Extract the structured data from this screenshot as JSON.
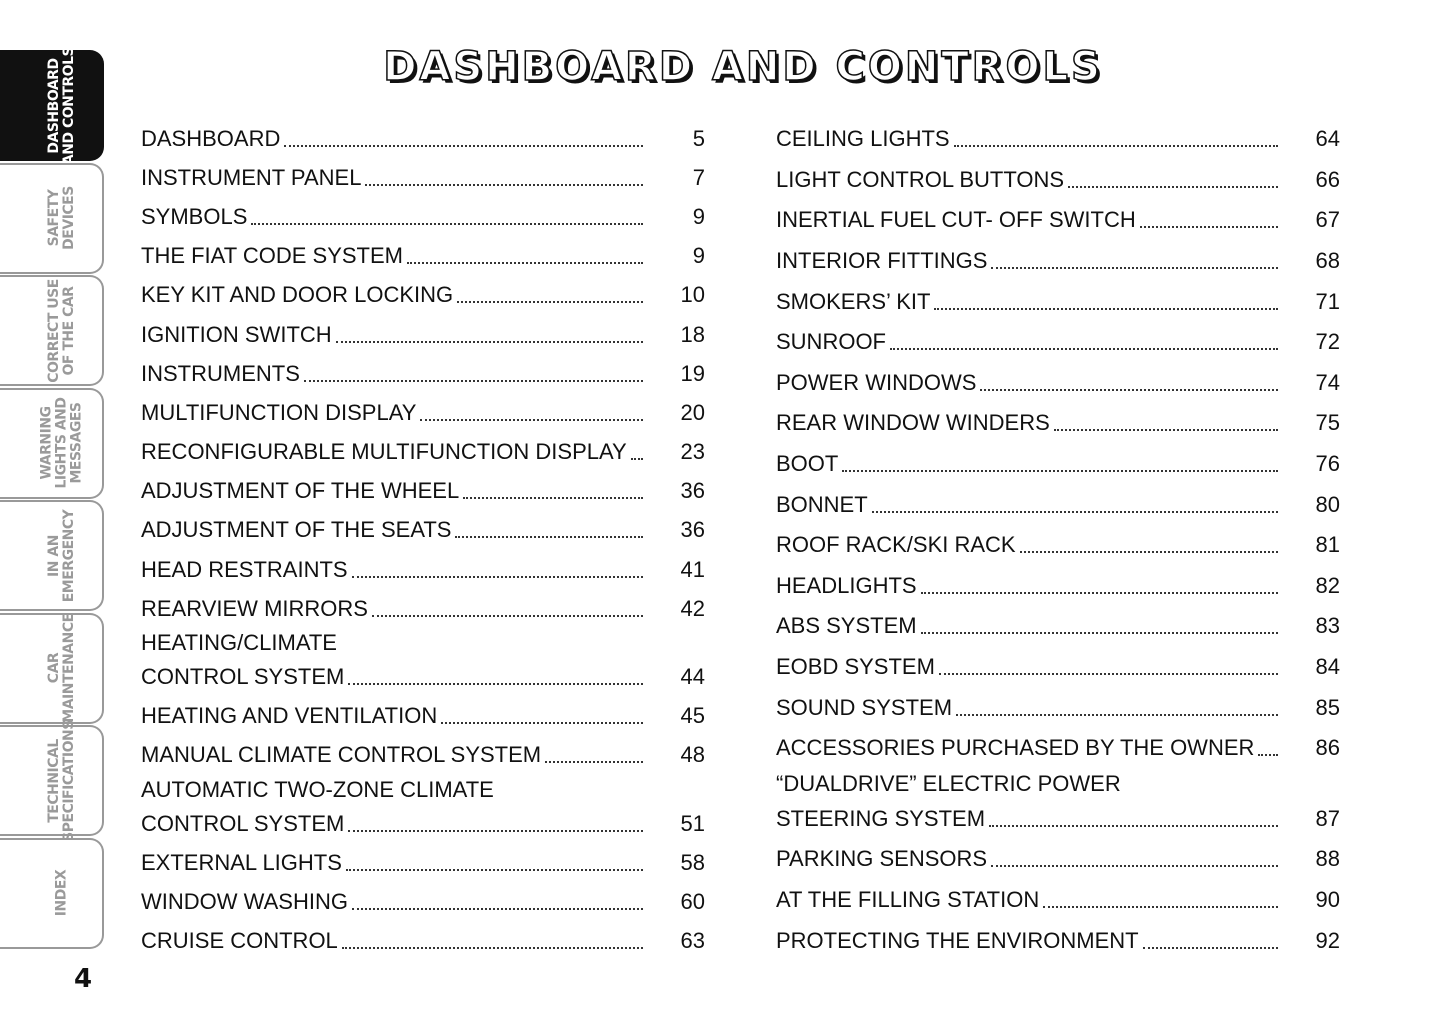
{
  "title": "DASHBOARD AND CONTROLS",
  "tabs": [
    {
      "label": "DASHBOARD\nAND CONTROLS",
      "active": true
    },
    {
      "label": "SAFETY\nDEVICES",
      "active": false
    },
    {
      "label": "CORRECT USE\nOF THE CAR",
      "active": false
    },
    {
      "label": "WARNING\nLIGHTS AND\nMESSAGES",
      "active": false
    },
    {
      "label": "IN AN\nEMERGENCY",
      "active": false
    },
    {
      "label": "CAR\nMAINTENANCE",
      "active": false
    },
    {
      "label": "TECHNICAL\nSPECIFICATIONS",
      "active": false
    },
    {
      "label": "INDEX",
      "active": false
    }
  ],
  "page_number": "4",
  "toc_left": [
    {
      "text": "DASHBOARD",
      "page": "5"
    },
    {
      "text": "INSTRUMENT PANEL",
      "page": "7"
    },
    {
      "text": "SYMBOLS",
      "page": "9"
    },
    {
      "text": "THE FIAT CODE SYSTEM",
      "page": "9"
    },
    {
      "text": "KEY KIT AND DOOR LOCKING",
      "page": "10"
    },
    {
      "text": "IGNITION SWITCH",
      "page": "18"
    },
    {
      "text": "INSTRUMENTS",
      "page": "19"
    },
    {
      "text": "MULTIFUNCTION DISPLAY",
      "page": "20"
    },
    {
      "text": "RECONFIGURABLE MULTIFUNCTION DISPLAY",
      "page": "23"
    },
    {
      "text": "ADJUSTMENT OF THE WHEEL",
      "page": "36"
    },
    {
      "text": "ADJUSTMENT OF THE SEATS",
      "page": "36"
    },
    {
      "text": "HEAD RESTRAINTS",
      "page": "41"
    },
    {
      "text": "REARVIEW MIRRORS",
      "page": "42"
    },
    {
      "first": "HEATING/CLIMATE",
      "text": "CONTROL SYSTEM",
      "page": "44"
    },
    {
      "text": "HEATING AND VENTILATION",
      "page": "45"
    },
    {
      "text": "MANUAL CLIMATE CONTROL SYSTEM",
      "page": "48"
    },
    {
      "first": "AUTOMATIC TWO-ZONE CLIMATE",
      "text": "CONTROL SYSTEM",
      "page": "51"
    },
    {
      "text": "EXTERNAL LIGHTS",
      "page": "58"
    },
    {
      "text": "WINDOW WASHING",
      "page": "60"
    },
    {
      "text": "CRUISE CONTROL",
      "page": "63"
    }
  ],
  "toc_right": [
    {
      "text": "CEILING LIGHTS",
      "page": "64"
    },
    {
      "text": "LIGHT CONTROL BUTTONS",
      "page": "66"
    },
    {
      "text": "INERTIAL FUEL CUT- OFF SWITCH",
      "page": "67"
    },
    {
      "text": "INTERIOR FITTINGS",
      "page": "68"
    },
    {
      "text": "SMOKERS’ KIT",
      "page": "71"
    },
    {
      "text": "SUNROOF",
      "page": "72"
    },
    {
      "text": "POWER WINDOWS",
      "page": "74"
    },
    {
      "text": "REAR WINDOW WINDERS",
      "page": "75"
    },
    {
      "text": "BOOT",
      "page": "76"
    },
    {
      "text": "BONNET",
      "page": "80"
    },
    {
      "text": "ROOF RACK/SKI RACK",
      "page": "81"
    },
    {
      "text": "HEADLIGHTS",
      "page": "82"
    },
    {
      "text": "ABS SYSTEM",
      "page": "83"
    },
    {
      "text": "EOBD SYSTEM",
      "page": "84"
    },
    {
      "text": "SOUND SYSTEM",
      "page": "85"
    },
    {
      "text": "ACCESSORIES PURCHASED BY THE OWNER",
      "page": "86"
    },
    {
      "first": "“DUALDRIVE” ELECTRIC POWER",
      "text": "STEERING SYSTEM",
      "page": "87"
    },
    {
      "text": "PARKING SENSORS",
      "page": "88"
    },
    {
      "text": "AT THE FILLING STATION",
      "page": "90"
    },
    {
      "text": "PROTECTING THE ENVIRONMENT",
      "page": "92"
    }
  ]
}
